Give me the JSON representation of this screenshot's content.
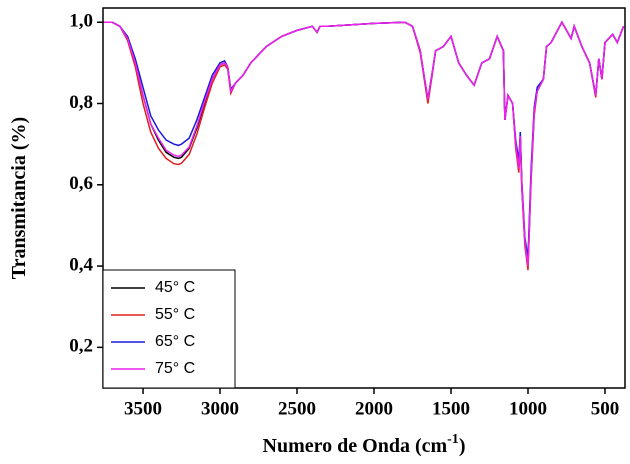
{
  "chart_data": {
    "type": "line",
    "x_label": [
      "Numero de Onda (cm",
      "-1",
      ")"
    ],
    "y_label": "Transmitancia (%)",
    "x": [
      3760,
      3700,
      3650,
      3600,
      3550,
      3500,
      3450,
      3400,
      3350,
      3300,
      3270,
      3250,
      3200,
      3150,
      3100,
      3050,
      3000,
      2970,
      2950,
      2930,
      2900,
      2850,
      2800,
      2700,
      2600,
      2500,
      2400,
      2370,
      2350,
      2300,
      2000,
      1800,
      1750,
      1700,
      1680,
      1650,
      1620,
      1600,
      1550,
      1500,
      1450,
      1400,
      1350,
      1300,
      1250,
      1200,
      1160,
      1150,
      1130,
      1100,
      1080,
      1060,
      1050,
      1040,
      1020,
      1000,
      980,
      960,
      940,
      900,
      880,
      850,
      780,
      720,
      700,
      650,
      600,
      560,
      540,
      520,
      500,
      450,
      420,
      380
    ],
    "series": [
      {
        "name": "45° C",
        "color": "#000000",
        "values": [
          1.0,
          1.0,
          0.99,
          0.96,
          0.9,
          0.82,
          0.75,
          0.71,
          0.68,
          0.668,
          0.665,
          0.668,
          0.69,
          0.74,
          0.8,
          0.86,
          0.895,
          0.9,
          0.89,
          0.83,
          0.85,
          0.87,
          0.9,
          0.94,
          0.965,
          0.98,
          0.99,
          0.975,
          0.99,
          0.99,
          0.997,
          1.0,
          0.99,
          0.93,
          0.88,
          0.81,
          0.88,
          0.93,
          0.94,
          0.965,
          0.9,
          0.87,
          0.845,
          0.9,
          0.91,
          0.965,
          0.93,
          0.76,
          0.82,
          0.8,
          0.7,
          0.64,
          0.72,
          0.6,
          0.46,
          0.41,
          0.62,
          0.78,
          0.83,
          0.86,
          0.94,
          0.95,
          1.0,
          0.96,
          0.99,
          0.94,
          0.9,
          0.82,
          0.91,
          0.86,
          0.95,
          0.97,
          0.95,
          0.99
        ]
      },
      {
        "name": "55° C",
        "color": "#e0201e",
        "values": [
          1.0,
          1.0,
          0.99,
          0.955,
          0.89,
          0.8,
          0.73,
          0.69,
          0.665,
          0.652,
          0.65,
          0.653,
          0.675,
          0.725,
          0.79,
          0.85,
          0.89,
          0.895,
          0.885,
          0.825,
          0.85,
          0.87,
          0.9,
          0.94,
          0.965,
          0.98,
          0.99,
          0.975,
          0.99,
          0.99,
          0.997,
          1.0,
          0.99,
          0.925,
          0.875,
          0.8,
          0.875,
          0.93,
          0.94,
          0.965,
          0.9,
          0.87,
          0.845,
          0.9,
          0.91,
          0.965,
          0.93,
          0.76,
          0.82,
          0.8,
          0.69,
          0.63,
          0.71,
          0.59,
          0.45,
          0.39,
          0.61,
          0.77,
          0.83,
          0.86,
          0.94,
          0.95,
          1.0,
          0.96,
          0.99,
          0.94,
          0.9,
          0.815,
          0.91,
          0.86,
          0.95,
          0.97,
          0.95,
          0.99
        ]
      },
      {
        "name": "65° C",
        "color": "#1a1adc",
        "values": [
          1.0,
          1.0,
          0.99,
          0.965,
          0.91,
          0.84,
          0.77,
          0.735,
          0.71,
          0.7,
          0.697,
          0.7,
          0.715,
          0.76,
          0.815,
          0.87,
          0.9,
          0.905,
          0.89,
          0.835,
          0.85,
          0.87,
          0.9,
          0.94,
          0.965,
          0.98,
          0.99,
          0.975,
          0.99,
          0.99,
          0.997,
          1.0,
          0.99,
          0.93,
          0.88,
          0.81,
          0.88,
          0.93,
          0.94,
          0.965,
          0.9,
          0.87,
          0.845,
          0.9,
          0.91,
          0.965,
          0.93,
          0.76,
          0.82,
          0.8,
          0.71,
          0.66,
          0.73,
          0.61,
          0.47,
          0.42,
          0.64,
          0.79,
          0.84,
          0.86,
          0.94,
          0.95,
          1.0,
          0.96,
          0.99,
          0.94,
          0.9,
          0.82,
          0.91,
          0.86,
          0.95,
          0.97,
          0.95,
          0.99
        ]
      },
      {
        "name": "75° C",
        "color": "#ee22ee",
        "values": [
          1.0,
          1.0,
          0.99,
          0.96,
          0.9,
          0.82,
          0.75,
          0.715,
          0.685,
          0.673,
          0.67,
          0.673,
          0.693,
          0.745,
          0.805,
          0.86,
          0.895,
          0.9,
          0.89,
          0.83,
          0.85,
          0.87,
          0.9,
          0.94,
          0.965,
          0.98,
          0.99,
          0.975,
          0.99,
          0.99,
          0.997,
          1.0,
          0.99,
          0.93,
          0.88,
          0.81,
          0.88,
          0.93,
          0.94,
          0.965,
          0.9,
          0.87,
          0.845,
          0.9,
          0.91,
          0.965,
          0.93,
          0.76,
          0.82,
          0.8,
          0.7,
          0.64,
          0.72,
          0.6,
          0.46,
          0.4,
          0.62,
          0.78,
          0.83,
          0.86,
          0.94,
          0.95,
          1.0,
          0.96,
          0.99,
          0.94,
          0.9,
          0.82,
          0.91,
          0.86,
          0.95,
          0.97,
          0.95,
          0.99
        ]
      }
    ],
    "xlim": [
      3760,
      370
    ],
    "xticks": [
      3500,
      3000,
      2500,
      2000,
      1500,
      1000,
      500
    ],
    "ylim": [
      0.1,
      1.035
    ],
    "yticks": [
      {
        "value": 0.2,
        "label": "0,2"
      },
      {
        "value": 0.4,
        "label": "0,4"
      },
      {
        "value": 0.6,
        "label": "0,6"
      },
      {
        "value": 0.8,
        "label": "0,8"
      },
      {
        "value": 1.0,
        "label": "1,0"
      }
    ],
    "legend": "lower left"
  }
}
